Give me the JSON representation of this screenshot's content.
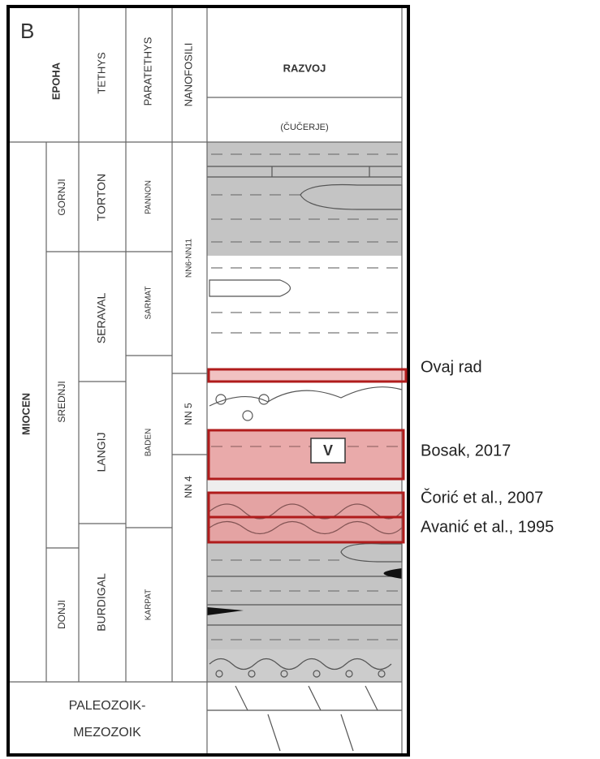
{
  "panel_label": "B",
  "header": {
    "epoha": "EPOHA",
    "tethys": "TETHYS",
    "paratethys": "PARATETHYS",
    "nanofosili": "NANOFOSILI",
    "razvoj": "RAZVOJ",
    "location": "(ČUČERJE)"
  },
  "epoch": "MIOCEN",
  "sub_epochs": [
    "GORNJI",
    "SREDNJI",
    "DONJI"
  ],
  "tethys_stages": [
    "TORTON",
    "SERAVAL",
    "LANGIJ",
    "BURDIGAL"
  ],
  "paratethys_stages": [
    "PANNON",
    "SARMAT",
    "BADEN",
    "KARPAT"
  ],
  "nanofossil_zones": [
    "NN6-NN11",
    "NN 5",
    "NN 4"
  ],
  "basement": [
    "PALEOZOIK-",
    "MEZOZOIK"
  ],
  "marker": "V",
  "annotations": [
    "Ovaj rad",
    "Bosak, 2017",
    "Čorić et al., 2007",
    "Avanić et al., 1995"
  ]
}
